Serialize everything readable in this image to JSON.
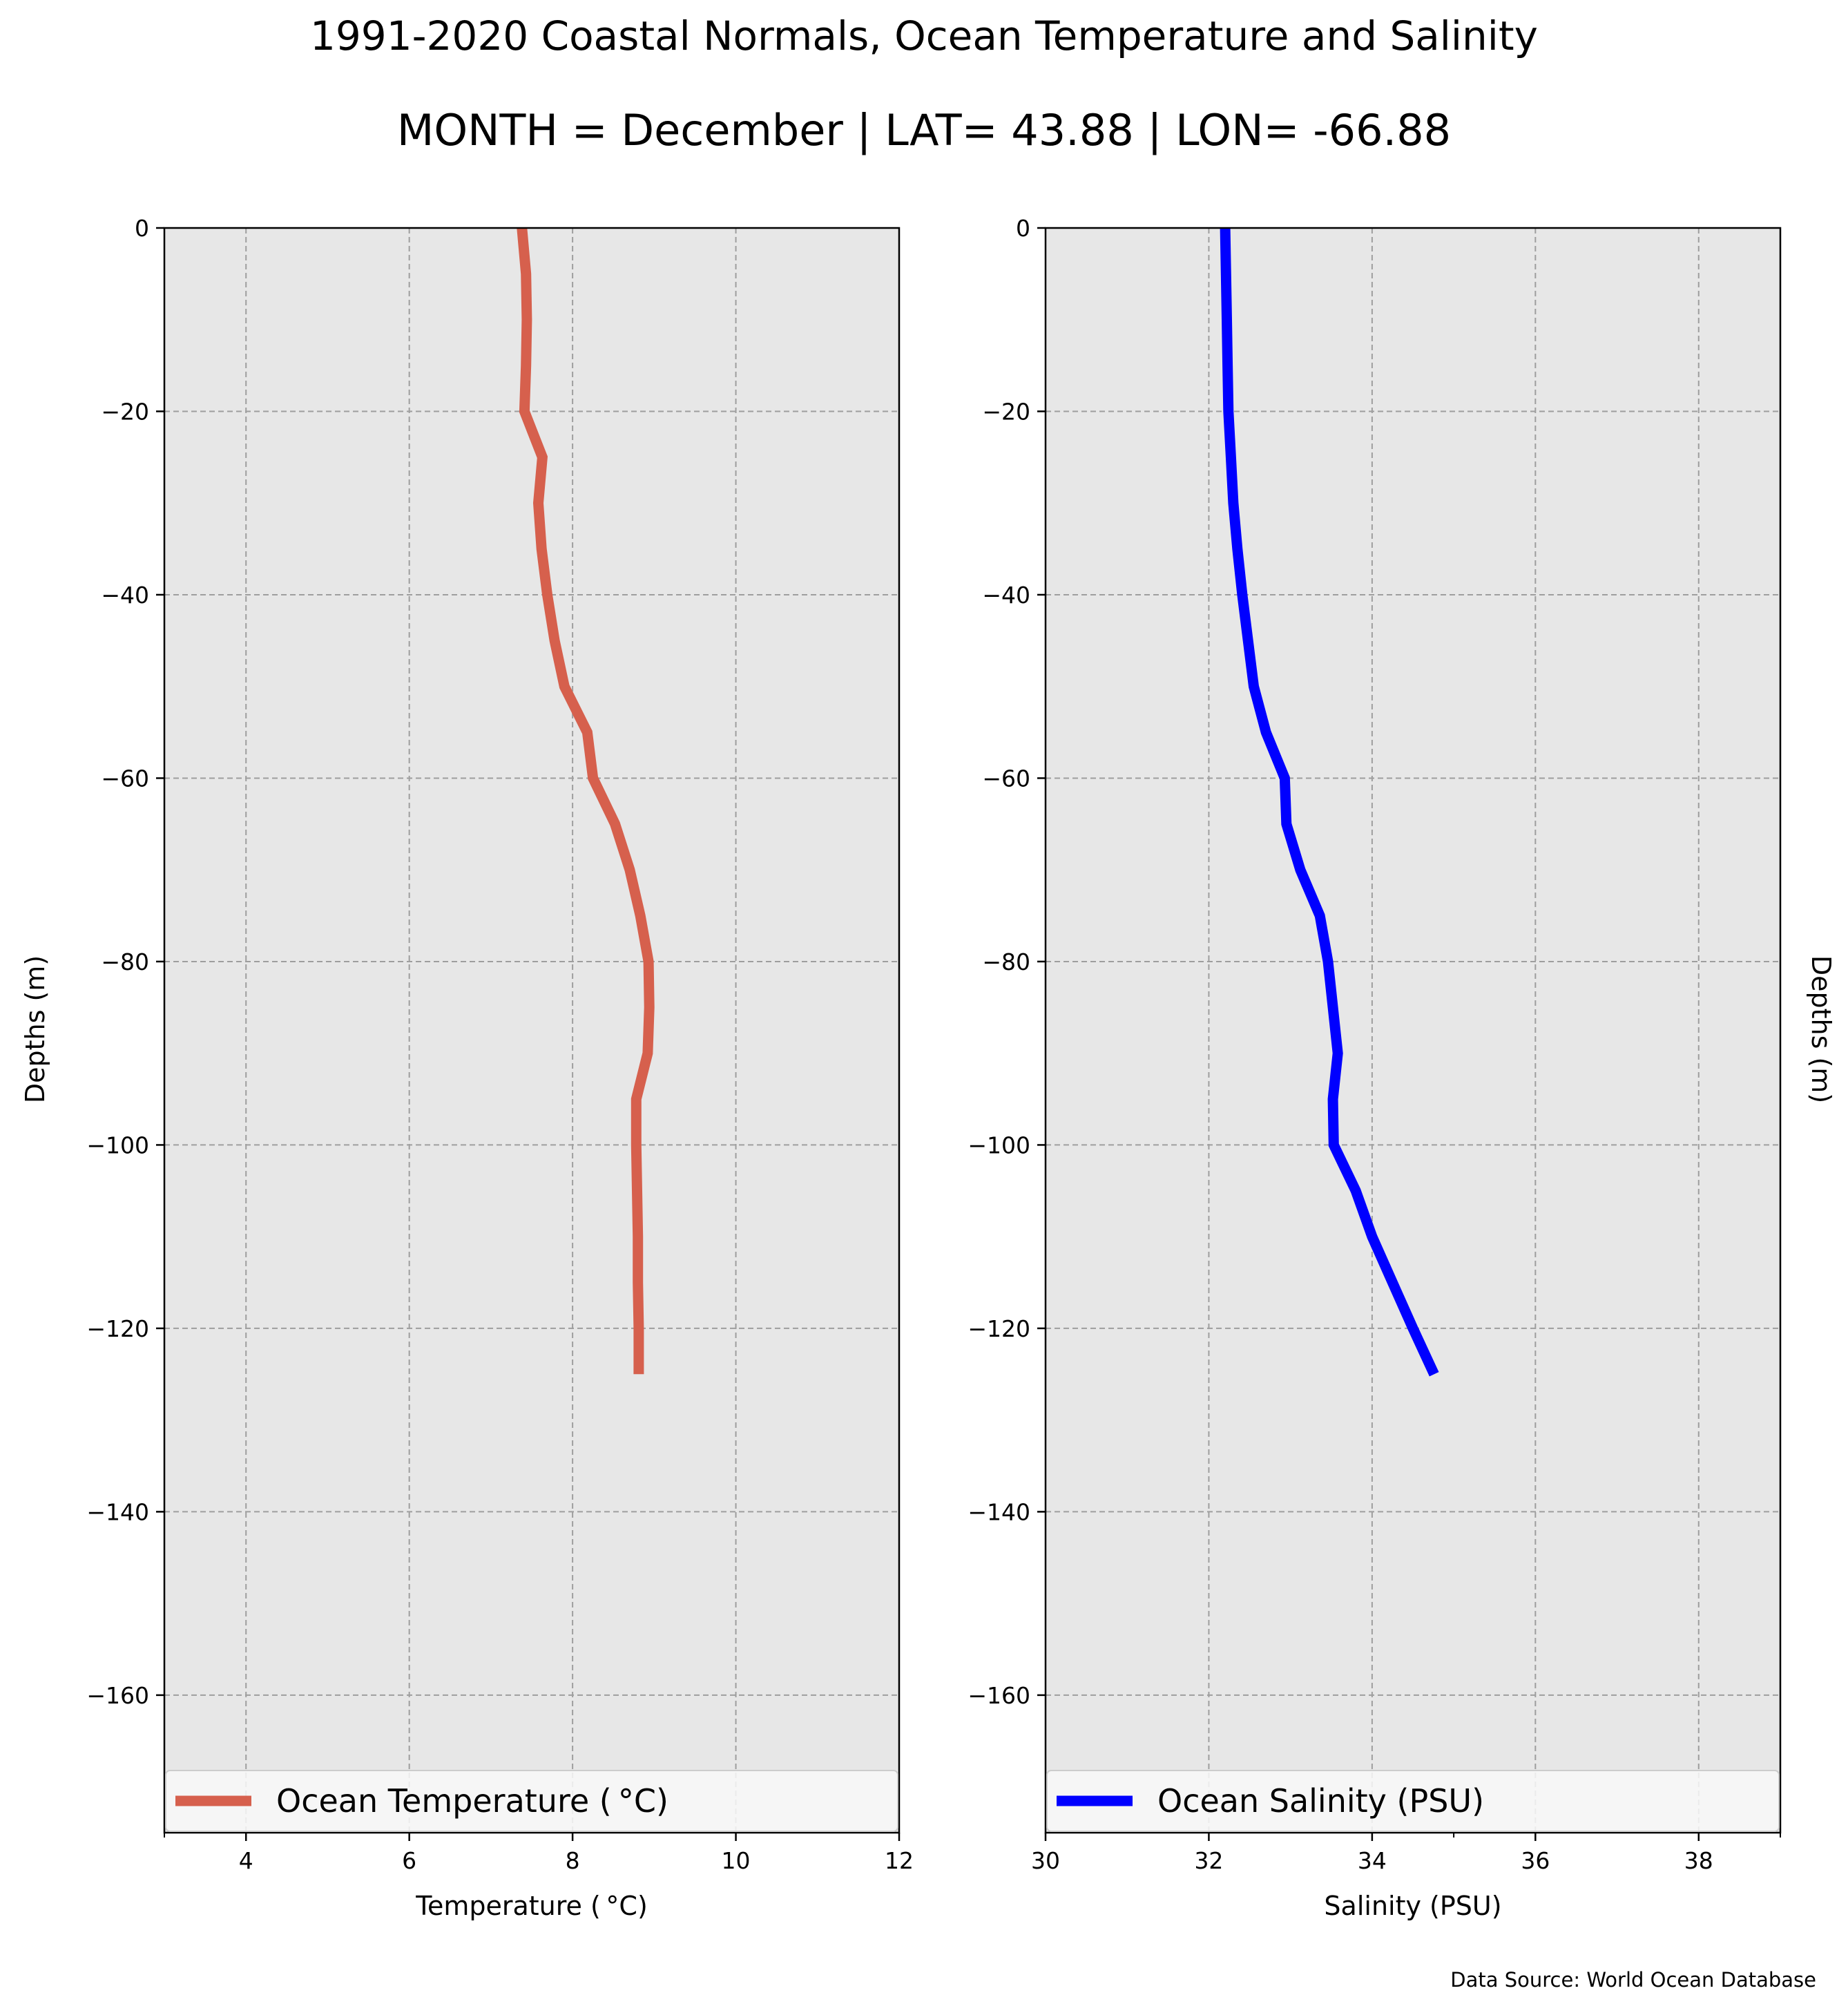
{
  "figure": {
    "title": "1991-2020 Coastal Normals, Ocean Temperature and Salinity",
    "subtitle": "MONTH = December | LAT= 43.88 | LON= -66.88",
    "source_note": "Data Source: World Ocean Database",
    "background_color": "#ffffff",
    "plot_background_color": "#e7e7e7"
  },
  "chart_data": [
    {
      "type": "line",
      "xlabel": "Temperature ($^\\circ$C)",
      "xlabel_display": "Temperature ( °C)",
      "ylabel": "Depths (m)",
      "ylabel_side": "left",
      "xlim": [
        3,
        12
      ],
      "ylim": [
        -175,
        0
      ],
      "xticks": [
        4,
        6,
        8,
        10,
        12
      ],
      "xtick_labels": [
        "4",
        "6",
        "8",
        "10",
        "12"
      ],
      "x_minor_ticks": [
        3
      ],
      "yticks": [
        0,
        -20,
        -40,
        -60,
        -80,
        -100,
        -120,
        -140,
        -160
      ],
      "ytick_labels": [
        "0",
        "−20",
        "−40",
        "−60",
        "−80",
        "−100",
        "−120",
        "−140",
        "−160"
      ],
      "grid": true,
      "legend_placement": "bottom",
      "series": [
        {
          "name": "Ocean Temperature ( °C)",
          "color": "#d6604d",
          "points": [
            {
              "x": 7.38,
              "y": 0
            },
            {
              "x": 7.43,
              "y": -5
            },
            {
              "x": 7.44,
              "y": -10
            },
            {
              "x": 7.43,
              "y": -15
            },
            {
              "x": 7.41,
              "y": -20
            },
            {
              "x": 7.63,
              "y": -25
            },
            {
              "x": 7.58,
              "y": -30
            },
            {
              "x": 7.62,
              "y": -35
            },
            {
              "x": 7.69,
              "y": -40
            },
            {
              "x": 7.78,
              "y": -45
            },
            {
              "x": 7.9,
              "y": -50
            },
            {
              "x": 8.18,
              "y": -55
            },
            {
              "x": 8.25,
              "y": -60
            },
            {
              "x": 8.52,
              "y": -65
            },
            {
              "x": 8.7,
              "y": -70
            },
            {
              "x": 8.83,
              "y": -75
            },
            {
              "x": 8.93,
              "y": -80
            },
            {
              "x": 8.94,
              "y": -85
            },
            {
              "x": 8.92,
              "y": -90
            },
            {
              "x": 8.78,
              "y": -95
            },
            {
              "x": 8.78,
              "y": -100
            },
            {
              "x": 8.79,
              "y": -105
            },
            {
              "x": 8.8,
              "y": -110
            },
            {
              "x": 8.8,
              "y": -115
            },
            {
              "x": 8.81,
              "y": -120
            },
            {
              "x": 8.81,
              "y": -125
            }
          ]
        }
      ]
    },
    {
      "type": "line",
      "xlabel": "Salinity (PSU)",
      "ylabel": "Depths (m)",
      "ylabel_side": "right",
      "xlim": [
        30,
        39
      ],
      "ylim": [
        -175,
        0
      ],
      "xticks": [
        30,
        32,
        34,
        36,
        38
      ],
      "xtick_labels": [
        "30",
        "32",
        "34",
        "36",
        "38"
      ],
      "x_minor_ticks": [
        35,
        39
      ],
      "yticks": [
        0,
        -20,
        -40,
        -60,
        -80,
        -100,
        -120,
        -140,
        -160
      ],
      "ytick_labels": [
        "0",
        "−20",
        "−40",
        "−60",
        "−80",
        "−100",
        "−120",
        "−140",
        "−160"
      ],
      "grid": true,
      "legend_placement": "bottom",
      "series": [
        {
          "name": "Ocean Salinity (PSU)",
          "color": "#0000ff",
          "points": [
            {
              "x": 32.2,
              "y": 0
            },
            {
              "x": 32.21,
              "y": -5
            },
            {
              "x": 32.22,
              "y": -10
            },
            {
              "x": 32.23,
              "y": -15
            },
            {
              "x": 32.24,
              "y": -20
            },
            {
              "x": 32.27,
              "y": -25
            },
            {
              "x": 32.3,
              "y": -30
            },
            {
              "x": 32.35,
              "y": -35
            },
            {
              "x": 32.41,
              "y": -40
            },
            {
              "x": 32.48,
              "y": -45
            },
            {
              "x": 32.55,
              "y": -50
            },
            {
              "x": 32.7,
              "y": -55
            },
            {
              "x": 32.93,
              "y": -60
            },
            {
              "x": 32.95,
              "y": -65
            },
            {
              "x": 33.12,
              "y": -70
            },
            {
              "x": 33.36,
              "y": -75
            },
            {
              "x": 33.46,
              "y": -80
            },
            {
              "x": 33.52,
              "y": -85
            },
            {
              "x": 33.58,
              "y": -90
            },
            {
              "x": 33.52,
              "y": -95
            },
            {
              "x": 33.53,
              "y": -100
            },
            {
              "x": 33.8,
              "y": -105
            },
            {
              "x": 34.0,
              "y": -110
            },
            {
              "x": 34.25,
              "y": -115
            },
            {
              "x": 34.5,
              "y": -120
            },
            {
              "x": 34.76,
              "y": -125
            }
          ]
        }
      ]
    }
  ]
}
